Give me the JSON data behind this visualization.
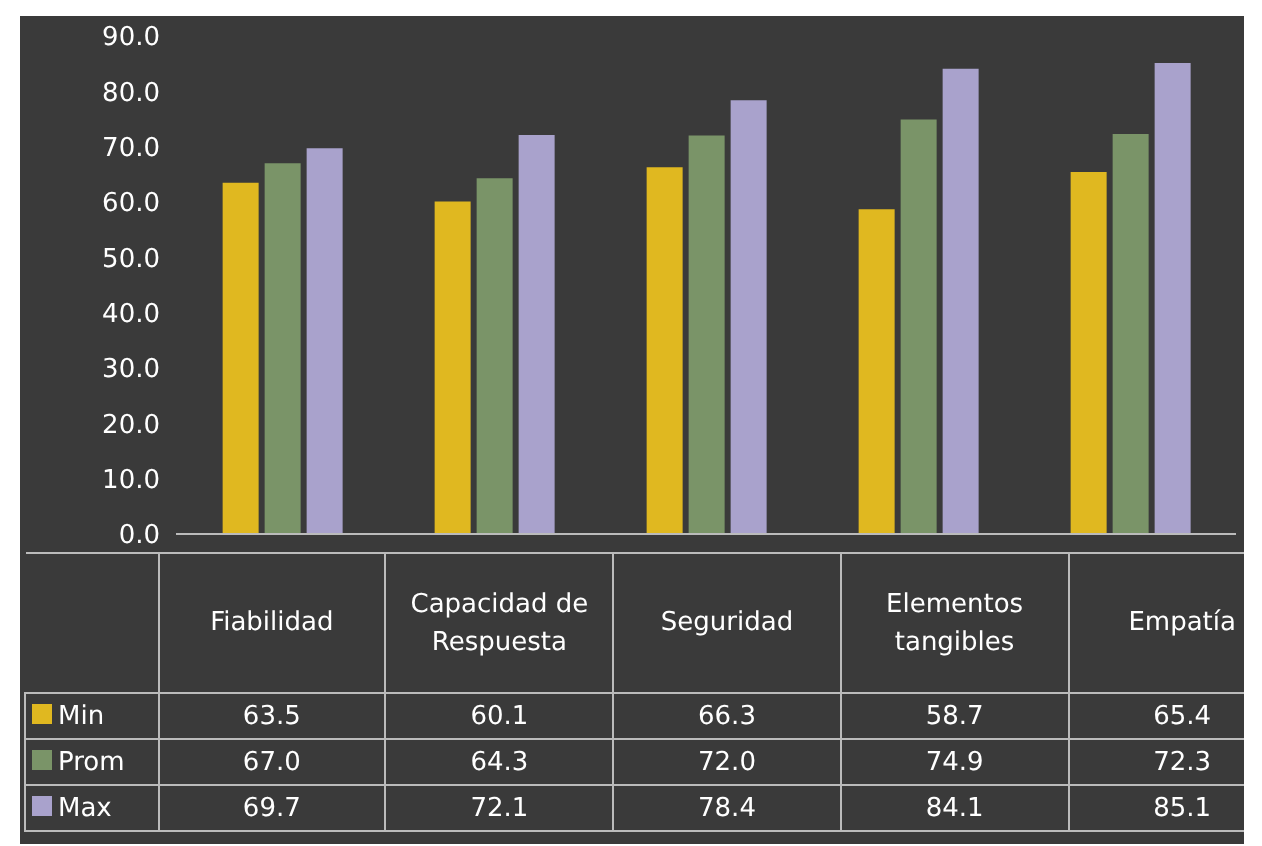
{
  "chart_data": {
    "type": "bar",
    "categories": [
      "Fiabilidad",
      "Capacidad de Respuesta",
      "Seguridad",
      "Elementos tangibles",
      "Empatía"
    ],
    "series": [
      {
        "name": "Min",
        "color": "#e0b820",
        "values": [
          63.5,
          60.1,
          66.3,
          58.7,
          65.4
        ],
        "value_labels": [
          "63.5",
          "60.1",
          "66.3",
          "58.7",
          "65.4"
        ]
      },
      {
        "name": "Prom",
        "color": "#7a9468",
        "values": [
          67.0,
          64.3,
          72.0,
          74.9,
          72.3
        ],
        "value_labels": [
          "67.0",
          "64.3",
          "72.0",
          "74.9",
          "72.3"
        ]
      },
      {
        "name": "Max",
        "color": "#a9a2cc",
        "values": [
          69.7,
          72.1,
          78.4,
          84.1,
          85.1
        ],
        "value_labels": [
          "69.7",
          "72.1",
          "78.4",
          "84.1",
          "85.1"
        ]
      }
    ],
    "ylim": [
      0,
      90
    ],
    "yticks": [
      {
        "value": 0,
        "label": "0.0"
      },
      {
        "value": 10,
        "label": "10.0"
      },
      {
        "value": 20,
        "label": "20.0"
      },
      {
        "value": 30,
        "label": "30.0"
      },
      {
        "value": 40,
        "label": "40.0"
      },
      {
        "value": 50,
        "label": "50.0"
      },
      {
        "value": 60,
        "label": "60.0"
      },
      {
        "value": 70,
        "label": "70.0"
      },
      {
        "value": 80,
        "label": "80.0"
      },
      {
        "value": 90,
        "label": "90.0"
      }
    ],
    "grid": false,
    "legend": "bottom"
  }
}
